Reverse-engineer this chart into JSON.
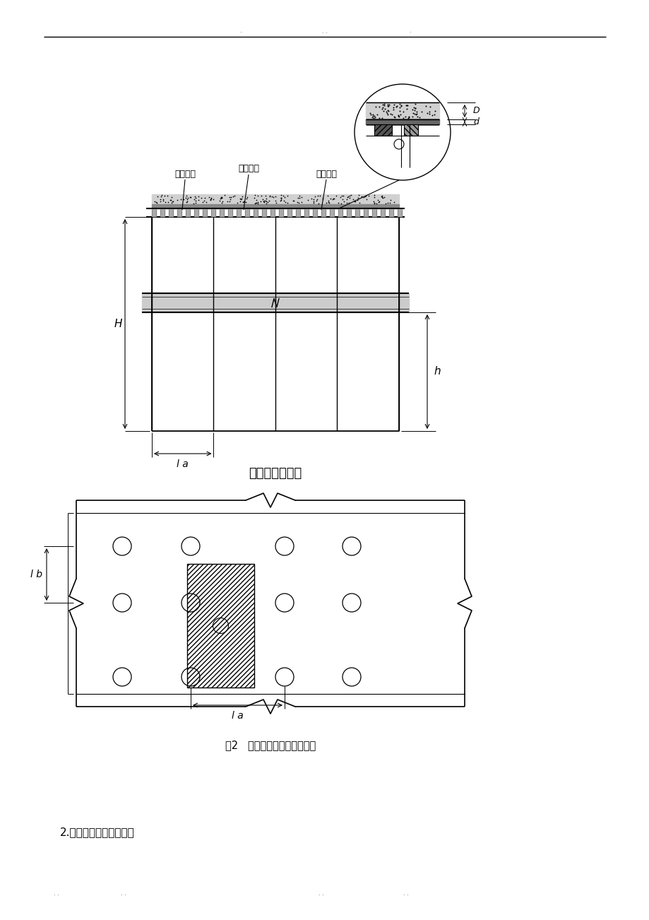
{
  "bg_color": "#ffffff",
  "line_color": "#000000",
  "title1": "模板支架立面图",
  "title2": "图2   楼板支撑架荷载计算单元",
  "footer_text": "2.模板支撑方木的计算：",
  "label_zongxiang": "纵向钢管",
  "label_hengxiang": "横向钢管",
  "label_banmu": "板底方木",
  "label_H": "H",
  "label_h": "h",
  "label_la1": "l a",
  "label_la2": "l a",
  "label_lb": "l b",
  "label_D": "D",
  "label_d": "d"
}
